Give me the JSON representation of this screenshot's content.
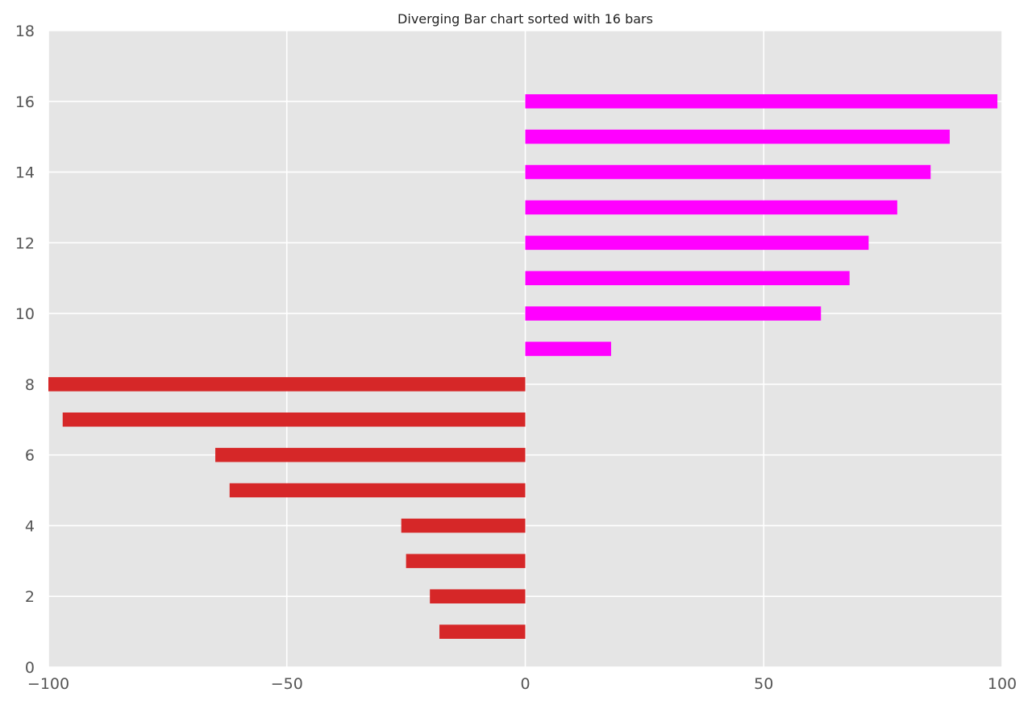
{
  "chart_data": {
    "type": "bar",
    "orientation": "horizontal",
    "title": "Diverging Bar chart sorted with 16 bars",
    "xlabel": "",
    "ylabel": "",
    "xlim": [
      -100,
      100
    ],
    "ylim": [
      0,
      18
    ],
    "x_ticks": [
      -100,
      -50,
      0,
      50,
      100
    ],
    "x_tick_labels": [
      "−100",
      "−50",
      "0",
      "50",
      "100"
    ],
    "y_ticks": [
      0,
      2,
      4,
      6,
      8,
      10,
      12,
      14,
      16,
      18
    ],
    "y_tick_labels": [
      "0",
      "2",
      "4",
      "6",
      "8",
      "10",
      "12",
      "14",
      "16",
      "18"
    ],
    "grid": true,
    "positions": [
      1,
      2,
      3,
      4,
      5,
      6,
      7,
      8,
      9,
      10,
      11,
      12,
      13,
      14,
      15,
      16
    ],
    "values": [
      -18,
      -20,
      -25,
      -26,
      -62,
      -65,
      -97,
      -100,
      18,
      62,
      68,
      72,
      78,
      85,
      89,
      99
    ],
    "colors": {
      "negative": "#d62728",
      "positive": "#ff00ff",
      "background": "#e5e5e5",
      "grid": "#ffffff"
    }
  }
}
